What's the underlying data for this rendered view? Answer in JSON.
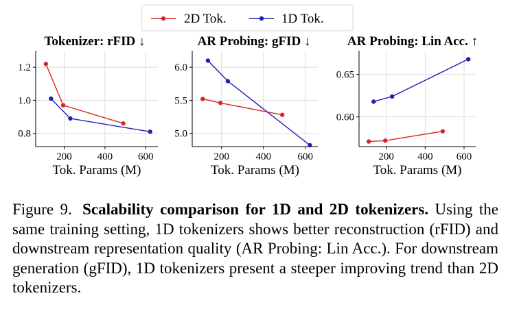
{
  "colors": {
    "tok2d": "#d62728",
    "tok1d": "#1f1fb0"
  },
  "legend": [
    {
      "name": "2D Tok.",
      "color": "#d62728"
    },
    {
      "name": "1D Tok.",
      "color": "#1f1fb0"
    }
  ],
  "chart_data": [
    {
      "type": "line",
      "title": "Tokenizer: rFID ↓",
      "xlabel": "Tok. Params (M)",
      "ylabel": "",
      "xlim": [
        60,
        660
      ],
      "ylim": [
        0.72,
        1.3
      ],
      "xticks": [
        200,
        400,
        600
      ],
      "yticks": [
        0.8,
        1.0,
        1.2
      ],
      "ytick_labels": [
        "0.8",
        "1.0",
        "1.2"
      ],
      "grid": true,
      "series": [
        {
          "name": "2D Tok.",
          "x": [
            110,
            195,
            490
          ],
          "y": [
            1.22,
            0.97,
            0.86
          ]
        },
        {
          "name": "1D Tok.",
          "x": [
            135,
            230,
            622
          ],
          "y": [
            1.01,
            0.89,
            0.81
          ]
        }
      ]
    },
    {
      "type": "line",
      "title": "AR Probing: gFID ↓",
      "xlabel": "Tok. Params (M)",
      "ylabel": "",
      "xlim": [
        60,
        660
      ],
      "ylim": [
        4.8,
        6.25
      ],
      "xticks": [
        200,
        400,
        600
      ],
      "yticks": [
        5.0,
        5.5,
        6.0
      ],
      "ytick_labels": [
        "5.0",
        "5.5",
        "6.0"
      ],
      "grid": true,
      "series": [
        {
          "name": "2D Tok.",
          "x": [
            110,
            195,
            490
          ],
          "y": [
            5.52,
            5.46,
            5.28
          ]
        },
        {
          "name": "1D Tok.",
          "x": [
            135,
            230,
            622
          ],
          "y": [
            6.1,
            5.79,
            4.82
          ]
        }
      ]
    },
    {
      "type": "line",
      "title": "AR Probing: Lin Acc. ↑",
      "xlabel": "Tok. Params (M)",
      "ylabel": "",
      "xlim": [
        60,
        660
      ],
      "ylim": [
        0.565,
        0.678
      ],
      "xticks": [
        200,
        400,
        600
      ],
      "yticks": [
        0.6,
        0.65
      ],
      "ytick_labels": [
        "0.60",
        "0.65"
      ],
      "grid": true,
      "series": [
        {
          "name": "2D Tok.",
          "x": [
            110,
            195,
            490
          ],
          "y": [
            0.571,
            0.572,
            0.583
          ]
        },
        {
          "name": "1D Tok.",
          "x": [
            135,
            230,
            622
          ],
          "y": [
            0.618,
            0.624,
            0.668
          ]
        }
      ]
    }
  ],
  "caption": {
    "label": "Figure 9.",
    "bold": "Scalability comparison for 1D and 2D tokenizers.",
    "text": "Using the same training setting, 1D tokenizers shows better reconstruction (rFID) and downstream representation quality (AR Probing: Lin Acc.). For downstream generation (gFID), 1D tokenizers present a steeper improving trend than 2D tokenizers."
  }
}
